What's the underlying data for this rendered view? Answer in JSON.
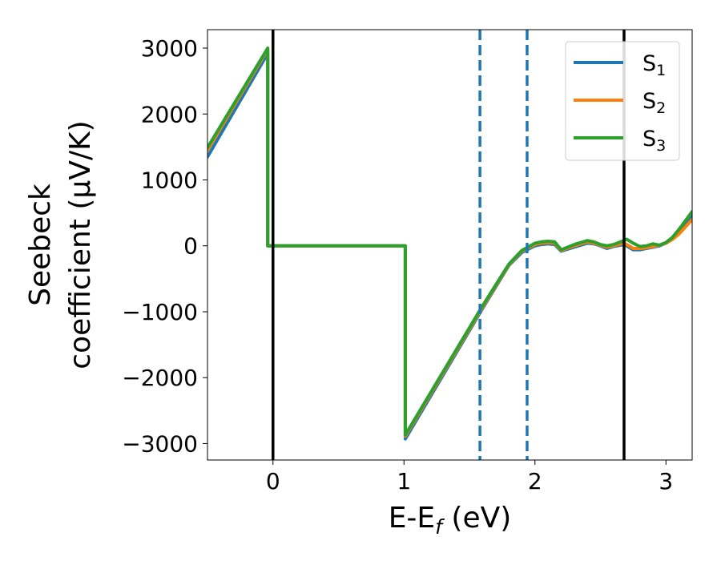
{
  "chart_data": {
    "type": "line",
    "xlabel": "E-E",
    "xlabel_sub": "f",
    "xlabel_unit": " (eV)",
    "ylabel_line1": "Seebeck",
    "ylabel_line2": "coefficient  (μV/K)",
    "xlim": [
      -0.5,
      3.2
    ],
    "ylim": [
      -3250,
      3280
    ],
    "xticks": [
      0,
      1,
      2,
      3
    ],
    "xtick_labels": [
      "0",
      "1",
      "2",
      "3"
    ],
    "yticks": [
      -3000,
      -2000,
      -1000,
      0,
      1000,
      2000,
      3000
    ],
    "ytick_labels": [
      "−3000",
      "−2000",
      "−1000",
      "0",
      "1000",
      "2000",
      "3000"
    ],
    "grid": false,
    "legend_position": "top-right",
    "vlines": [
      {
        "x": 0,
        "style": "solid",
        "color": "#000000"
      },
      {
        "x": 2.68,
        "style": "solid",
        "color": "#000000"
      },
      {
        "x": 1.58,
        "style": "dashed",
        "color": "#1f77b4"
      },
      {
        "x": 1.94,
        "style": "dashed",
        "color": "#1f77b4"
      }
    ],
    "series": [
      {
        "name": "S",
        "sub": "1",
        "color": "#1f77b4",
        "x": [
          -0.5,
          -0.04,
          -0.04,
          1.01,
          1.01,
          1.6,
          1.8,
          1.9,
          2.0,
          2.05,
          2.1,
          2.15,
          2.2,
          2.3,
          2.4,
          2.45,
          2.5,
          2.55,
          2.6,
          2.68,
          2.7,
          2.75,
          2.8,
          2.85,
          2.9,
          2.95,
          3.0,
          3.05,
          3.1,
          3.2
        ],
        "y": [
          1350,
          2920,
          0,
          0,
          -2930,
          -950,
          -300,
          -100,
          0,
          20,
          30,
          20,
          -80,
          -20,
          40,
          30,
          0,
          -40,
          -10,
          20,
          0,
          -60,
          -60,
          -40,
          -20,
          0,
          40,
          100,
          200,
          450
        ]
      },
      {
        "name": "S",
        "sub": "2",
        "color": "#ff7f0e",
        "x": [
          -0.5,
          -0.04,
          -0.04,
          1.01,
          1.01,
          1.6,
          1.8,
          1.9,
          2.0,
          2.05,
          2.1,
          2.15,
          2.2,
          2.3,
          2.4,
          2.45,
          2.5,
          2.55,
          2.6,
          2.68,
          2.7,
          2.75,
          2.8,
          2.85,
          2.9,
          2.95,
          3.0,
          3.05,
          3.1,
          3.2
        ],
        "y": [
          1450,
          2980,
          0,
          0,
          -2890,
          -930,
          -290,
          -80,
          20,
          40,
          50,
          40,
          -70,
          0,
          60,
          40,
          10,
          -20,
          0,
          40,
          20,
          -40,
          -40,
          -30,
          -10,
          10,
          40,
          100,
          180,
          400
        ]
      },
      {
        "name": "S",
        "sub": "3",
        "color": "#2ca02c",
        "x": [
          -0.5,
          -0.04,
          -0.04,
          1.01,
          1.01,
          1.6,
          1.8,
          1.9,
          2.0,
          2.05,
          2.1,
          2.15,
          2.2,
          2.3,
          2.4,
          2.45,
          2.5,
          2.55,
          2.6,
          2.68,
          2.7,
          2.75,
          2.8,
          2.85,
          2.9,
          2.95,
          3.0,
          3.05,
          3.1,
          3.2
        ],
        "y": [
          1490,
          3000,
          0,
          0,
          -2870,
          -910,
          -280,
          -70,
          40,
          60,
          70,
          60,
          -60,
          20,
          80,
          60,
          20,
          0,
          20,
          80,
          100,
          40,
          -10,
          0,
          30,
          10,
          50,
          130,
          250,
          520
        ]
      }
    ]
  }
}
